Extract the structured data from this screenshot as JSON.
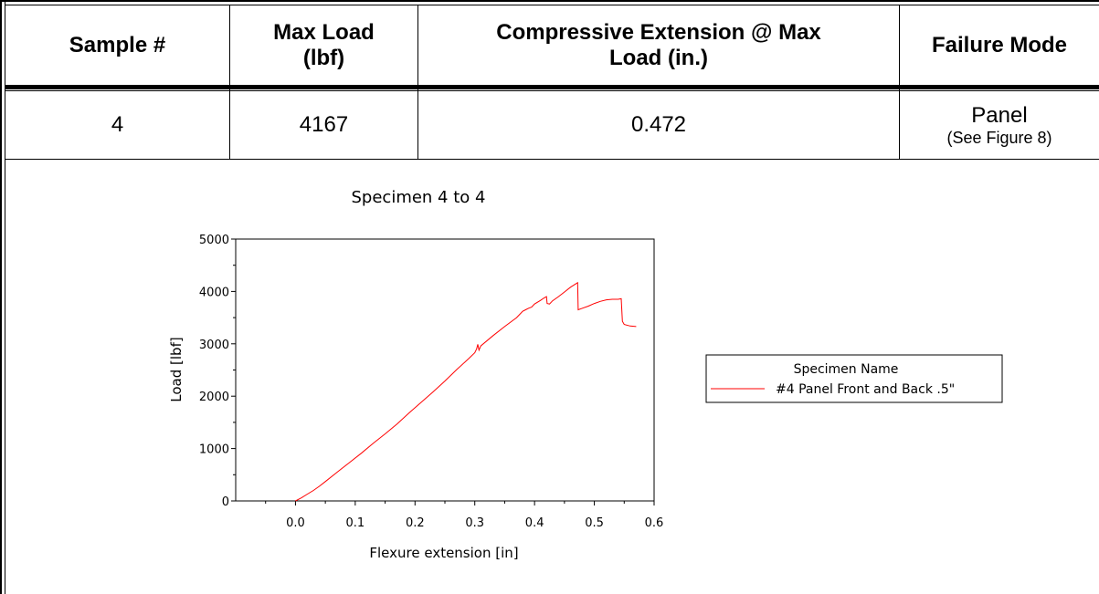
{
  "table": {
    "headers": [
      "Sample #",
      "Max Load\n(lbf)",
      "Compressive Extension @ Max\nLoad (in.)",
      "Failure Mode"
    ],
    "row": {
      "sample": "4",
      "max_load": "4167",
      "extension": "0.472",
      "failure_mode": "Panel",
      "failure_note": "(See Figure 8)"
    }
  },
  "chart_data": {
    "type": "line",
    "title": "Specimen 4 to 4",
    "xlabel": "Flexure extension [in]",
    "ylabel": "Load [lbf]",
    "xlim": [
      -0.1,
      0.6
    ],
    "ylim": [
      0,
      5000
    ],
    "x_ticks": [
      "0.0",
      "0.1",
      "0.2",
      "0.3",
      "0.4",
      "0.5",
      "0.6"
    ],
    "y_ticks": [
      "0",
      "1000",
      "2000",
      "3000",
      "4000",
      "5000"
    ],
    "legend": {
      "title": "Specimen Name",
      "placement": "right"
    },
    "series": [
      {
        "name": "#4 Panel Front and Back .5\"",
        "color": "#ff0000",
        "points": [
          [
            0.0,
            0
          ],
          [
            0.01,
            60
          ],
          [
            0.02,
            130
          ],
          [
            0.03,
            200
          ],
          [
            0.04,
            280
          ],
          [
            0.05,
            370
          ],
          [
            0.07,
            550
          ],
          [
            0.09,
            730
          ],
          [
            0.11,
            910
          ],
          [
            0.13,
            1100
          ],
          [
            0.15,
            1280
          ],
          [
            0.17,
            1470
          ],
          [
            0.19,
            1680
          ],
          [
            0.21,
            1880
          ],
          [
            0.23,
            2080
          ],
          [
            0.25,
            2290
          ],
          [
            0.27,
            2510
          ],
          [
            0.29,
            2720
          ],
          [
            0.3,
            2830
          ],
          [
            0.303,
            2900
          ],
          [
            0.305,
            2990
          ],
          [
            0.307,
            2880
          ],
          [
            0.31,
            2960
          ],
          [
            0.33,
            3150
          ],
          [
            0.35,
            3330
          ],
          [
            0.37,
            3500
          ],
          [
            0.38,
            3620
          ],
          [
            0.385,
            3650
          ],
          [
            0.39,
            3680
          ],
          [
            0.395,
            3700
          ],
          [
            0.4,
            3760
          ],
          [
            0.41,
            3830
          ],
          [
            0.415,
            3870
          ],
          [
            0.42,
            3900
          ],
          [
            0.421,
            3770
          ],
          [
            0.425,
            3760
          ],
          [
            0.43,
            3820
          ],
          [
            0.44,
            3900
          ],
          [
            0.45,
            3990
          ],
          [
            0.46,
            4080
          ],
          [
            0.472,
            4167
          ],
          [
            0.473,
            3650
          ],
          [
            0.48,
            3680
          ],
          [
            0.49,
            3720
          ],
          [
            0.5,
            3770
          ],
          [
            0.51,
            3810
          ],
          [
            0.52,
            3840
          ],
          [
            0.53,
            3850
          ],
          [
            0.54,
            3850
          ],
          [
            0.545,
            3860
          ],
          [
            0.547,
            3430
          ],
          [
            0.55,
            3370
          ],
          [
            0.56,
            3340
          ],
          [
            0.57,
            3330
          ]
        ]
      }
    ]
  }
}
